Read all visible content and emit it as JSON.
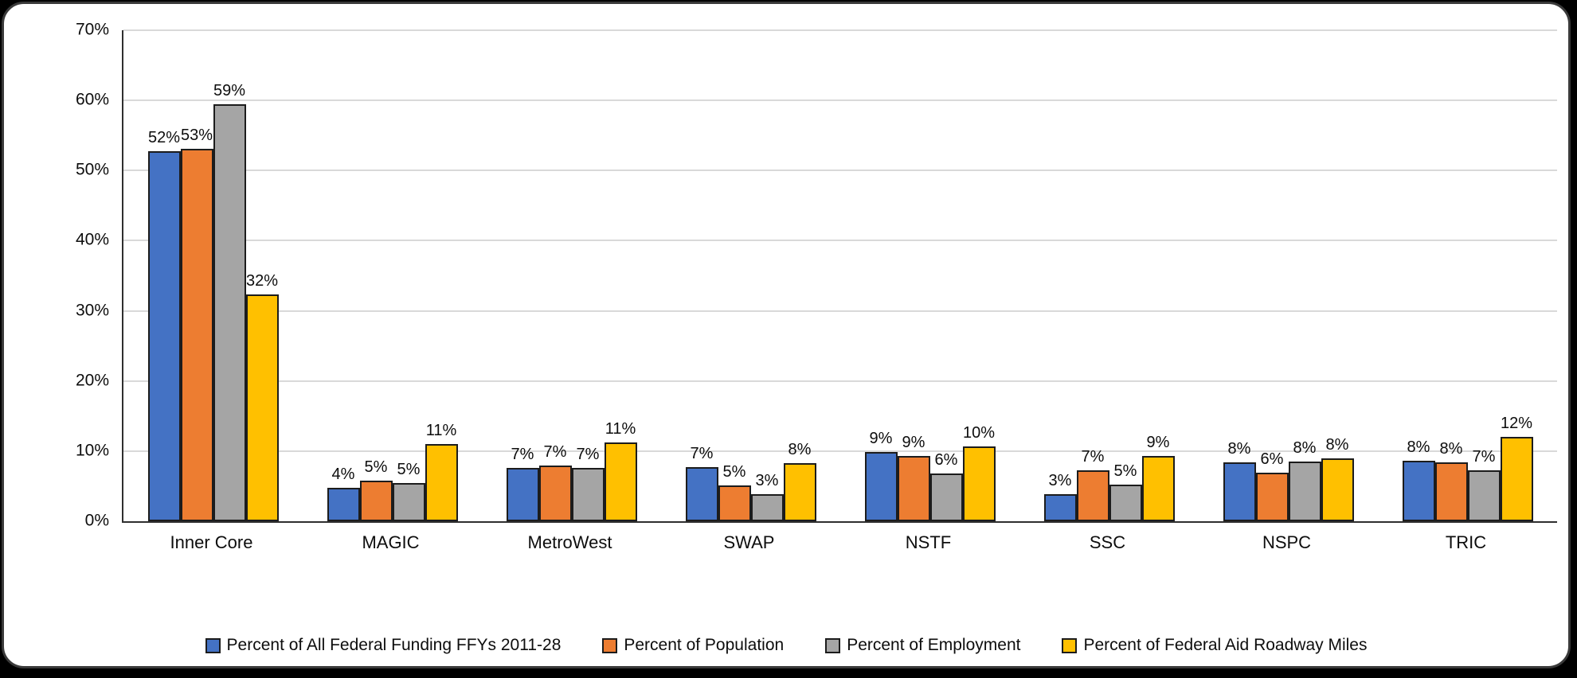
{
  "chart_data": {
    "type": "bar",
    "title": "",
    "xlabel": "",
    "ylabel": "",
    "ylim": [
      0,
      70
    ],
    "grid": true,
    "legend_position": "bottom",
    "y_ticks": [
      "70%",
      "60%",
      "50%",
      "40%",
      "30%",
      "20%",
      "10%",
      "0%"
    ],
    "categories": [
      "Inner Core",
      "MAGIC",
      "MetroWest",
      "SWAP",
      "NSTF",
      "SSC",
      "NSPC",
      "TRIC"
    ],
    "series": [
      {
        "name": "Percent of All Federal Funding FFYs 2011-28",
        "color": "#4472C4",
        "values": [
          52.3,
          4.3,
          7.2,
          7.3,
          9.4,
          3.4,
          8.0,
          8.2
        ],
        "labels": [
          "52%",
          "4%",
          "7%",
          "7%",
          "9%",
          "3%",
          "8%",
          "8%"
        ]
      },
      {
        "name": "Percent of Population",
        "color": "#ED7D31",
        "values": [
          52.6,
          5.3,
          7.5,
          4.7,
          8.8,
          6.8,
          6.5,
          8.0
        ],
        "labels": [
          "53%",
          "5%",
          "7%",
          "5%",
          "9%",
          "7%",
          "6%",
          "8%"
        ]
      },
      {
        "name": "Percent of Employment",
        "color": "#A5A5A5",
        "values": [
          59.0,
          5.0,
          7.1,
          3.4,
          6.4,
          4.8,
          8.1,
          6.8
        ],
        "labels": [
          "59%",
          "5%",
          "7%",
          "3%",
          "6%",
          "5%",
          "8%",
          "7%"
        ]
      },
      {
        "name": "Percent of Federal Aid Roadway Miles",
        "color": "#FFC000",
        "values": [
          31.9,
          10.5,
          10.8,
          7.8,
          10.2,
          8.9,
          8.5,
          11.6
        ],
        "labels": [
          "32%",
          "11%",
          "11%",
          "8%",
          "10%",
          "9%",
          "8%",
          "12%"
        ]
      }
    ],
    "colors": {
      "bar_border": "#1C1C1C",
      "gridline": "#D9D9D9",
      "axis_line": "#2F2F2F",
      "background": "#FFFFFF"
    }
  }
}
